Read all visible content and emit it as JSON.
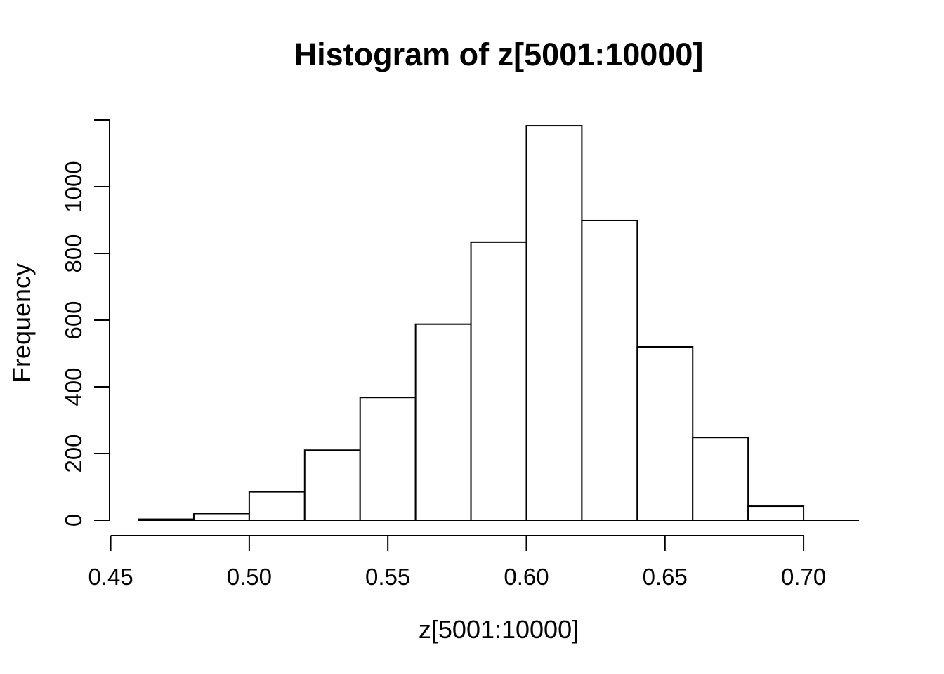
{
  "chart_data": {
    "type": "bar",
    "subtype": "histogram",
    "title": "Histogram of z[5001:10000]",
    "xlabel": "z[5001:10000]",
    "ylabel": "Frequency",
    "breaks": [
      0.46,
      0.48,
      0.5,
      0.52,
      0.54,
      0.56,
      0.58,
      0.6,
      0.62,
      0.64,
      0.66,
      0.68,
      0.7,
      0.72
    ],
    "counts": [
      3,
      20,
      85,
      210,
      368,
      588,
      834,
      1183,
      899,
      520,
      248,
      42,
      0
    ],
    "x_ticks": [
      0.45,
      0.5,
      0.55,
      0.6,
      0.65,
      0.7
    ],
    "x_tick_labels": [
      "0.45",
      "0.50",
      "0.55",
      "0.60",
      "0.65",
      "0.70"
    ],
    "y_ticks": [
      0,
      200,
      400,
      600,
      800,
      1000
    ],
    "y_tick_labels": [
      "0",
      "200",
      "400",
      "600",
      "800",
      "1000"
    ],
    "y_axis_top_tick_unlabeled": 1200,
    "xlim": [
      0.46,
      0.72
    ],
    "ylim": [
      0,
      1183
    ],
    "grid": false,
    "legend_position": "none",
    "colors": {
      "background": "#ffffff",
      "bar_fill": "#ffffff",
      "stroke": "#000000",
      "text": "#000000"
    }
  }
}
